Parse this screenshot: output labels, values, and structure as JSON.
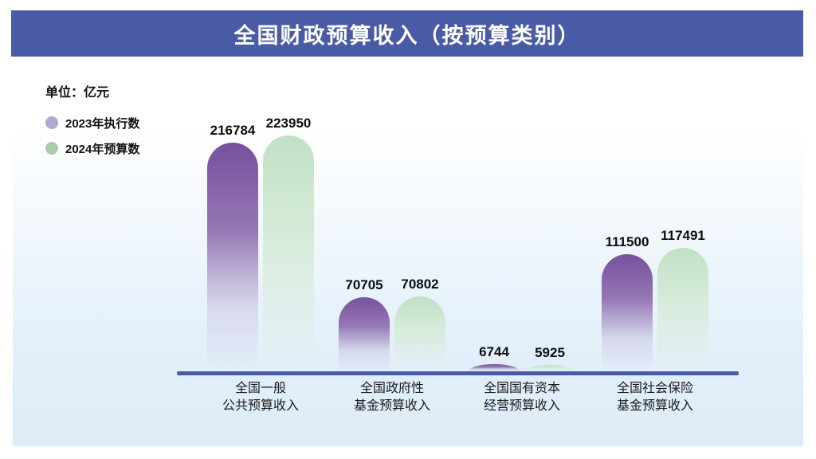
{
  "header": {
    "title": "全国财政预算收入（按预算类别）"
  },
  "unit_label": "单位：亿元",
  "legend": [
    {
      "label": "2023年执行数",
      "color": "#b5a7d5"
    },
    {
      "label": "2024年预算数",
      "color": "#a9cda8"
    }
  ],
  "colors": {
    "banner_bg": "#4a5ba6",
    "axis": "#4a5ba6",
    "bar_2023_top": "#77519e",
    "bar_2023_mid": "#9477b4",
    "bar_2024_top": "#c1e1c5",
    "bar_2024_mid": "#d6ebd9",
    "panel_bottom": "#ddecf8"
  },
  "chart_data": {
    "type": "bar",
    "title": "全国财政预算收入（按预算类别）",
    "unit": "亿元",
    "categories": [
      "全国一般\n公共预算收入",
      "全国政府性\n基金预算收入",
      "全国国有资本\n经营预算收入",
      "全国社会保险\n基金预算收入"
    ],
    "series": [
      {
        "name": "2023年执行数",
        "values": [
          216784,
          70705,
          6744,
          111500
        ]
      },
      {
        "name": "2024年预算数",
        "values": [
          223950,
          70802,
          5925,
          117491
        ]
      }
    ],
    "ylim": [
      0,
      230000
    ],
    "grid": false,
    "value_labels_shown": true,
    "legend_position": "top-left",
    "xlabel": "",
    "ylabel": "单位：亿元"
  }
}
